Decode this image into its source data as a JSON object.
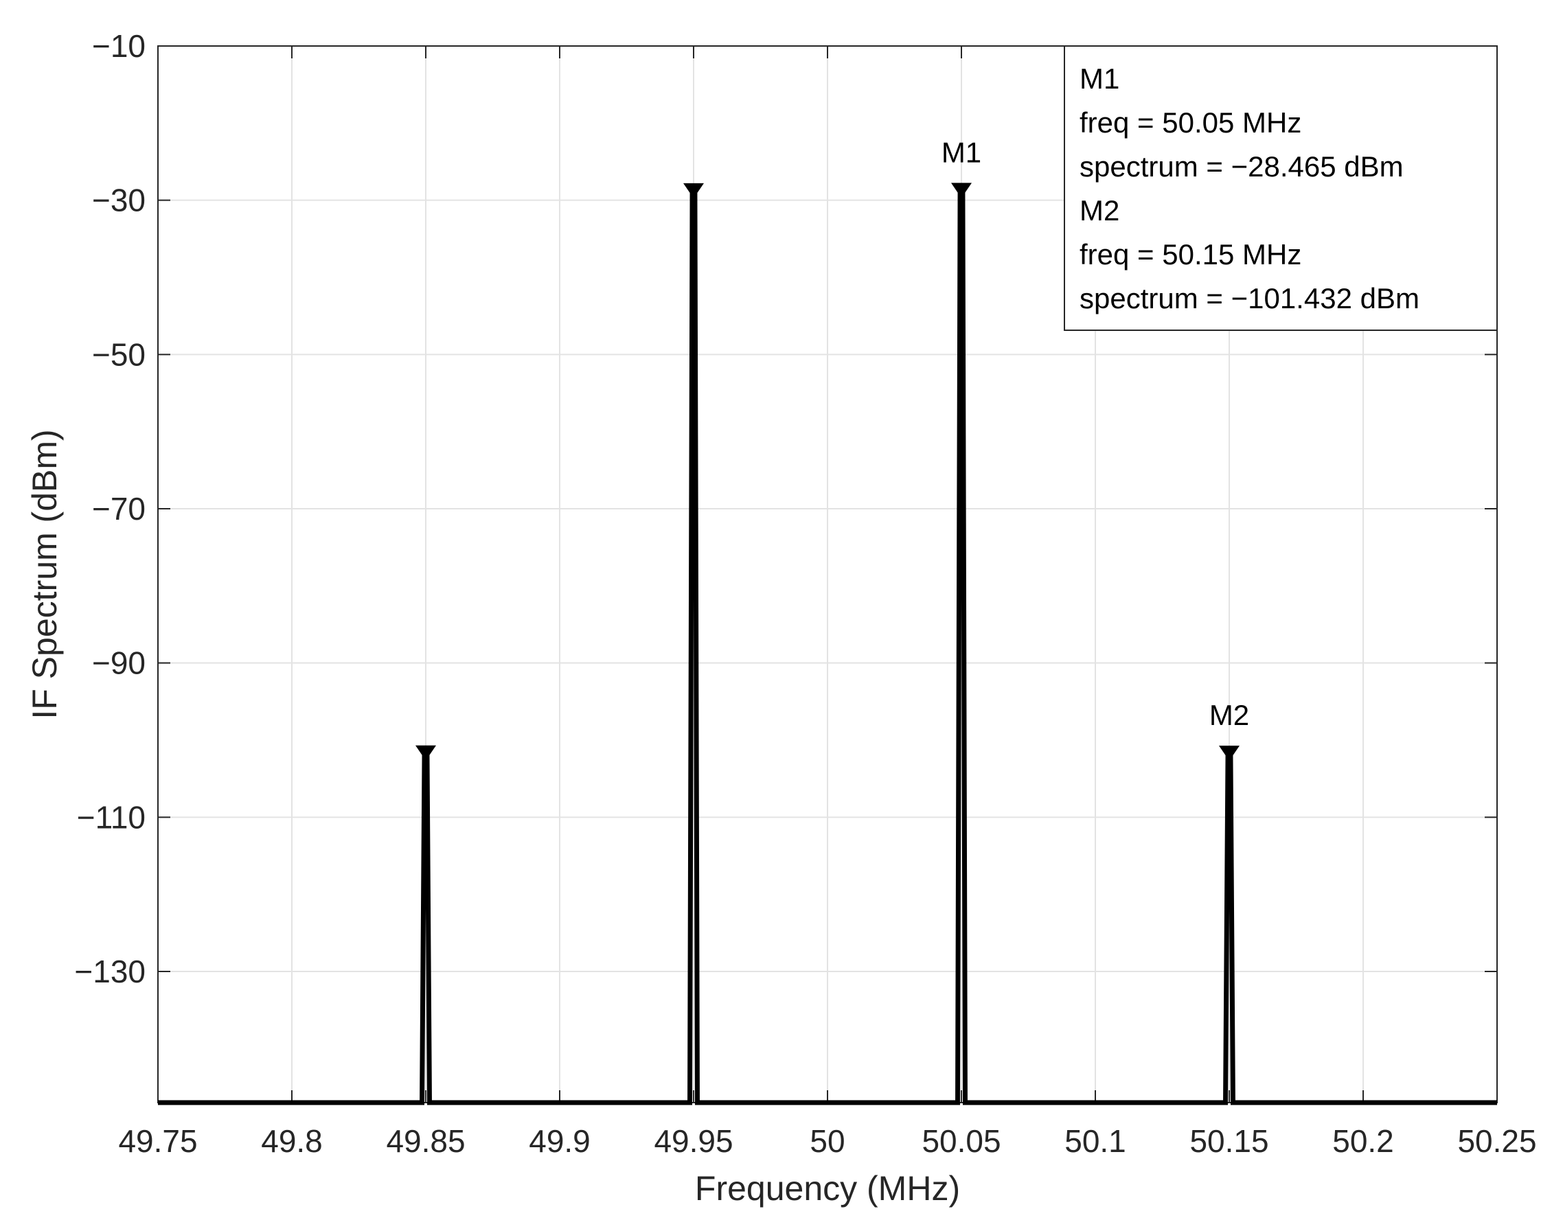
{
  "chart_data": {
    "type": "line",
    "xlabel": "Frequency (MHz)",
    "ylabel": "IF Spectrum (dBm)",
    "xlim": [
      49.75,
      50.25
    ],
    "ylim": [
      -147,
      -10
    ],
    "grid": true,
    "x_ticks": [
      49.75,
      49.8,
      49.85,
      49.9,
      49.95,
      50,
      50.05,
      50.1,
      50.15,
      50.2,
      50.25
    ],
    "x_tick_labels": [
      "49.75",
      "49.8",
      "49.85",
      "49.9",
      "49.95",
      "50",
      "50.05",
      "50.1",
      "50.15",
      "50.2",
      "50.25"
    ],
    "y_ticks": [
      -10,
      -30,
      -50,
      -70,
      -90,
      -110,
      -130
    ],
    "y_tick_labels": [
      "−10",
      "−30",
      "−50",
      "−70",
      "−90",
      "−110",
      "−130"
    ],
    "noise_floor": -147,
    "series": [
      {
        "color": "#000000",
        "peaks": [
          {
            "x": 49.85,
            "y": -101.4
          },
          {
            "x": 49.95,
            "y": -28.5
          },
          {
            "x": 50.05,
            "y": -28.465
          },
          {
            "x": 50.15,
            "y": -101.432
          }
        ]
      }
    ],
    "markers": [
      {
        "label": "M1",
        "x": 50.05,
        "y": -28.465
      },
      {
        "label": "M2",
        "x": 50.15,
        "y": -101.432
      }
    ],
    "unlabeled_markers": [
      {
        "x": 49.85,
        "y": -101.4
      },
      {
        "x": 49.95,
        "y": -28.5
      }
    ],
    "annotation_box": {
      "placement": "top-right",
      "lines": [
        "M1",
        "freq = 50.05 MHz",
        "spectrum = −28.465 dBm",
        "M2",
        "freq = 50.15 MHz",
        "spectrum = −101.432 dBm"
      ]
    }
  }
}
